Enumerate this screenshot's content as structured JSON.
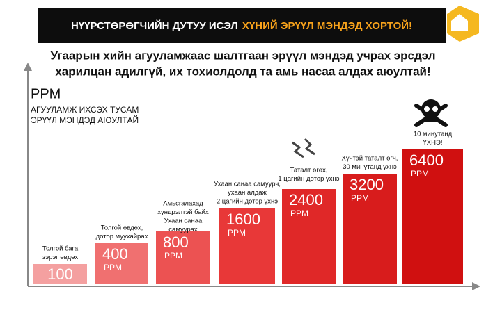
{
  "header": {
    "title_part1": "НҮҮРСТӨРӨГЧИЙН ДУТУУ ИСЭЛ",
    "title_part2": "ХҮНИЙ ЭРҮҮЛ МЭНДЭД ХОРТОЙ!"
  },
  "subtitle": [
    "Угаарын хийн агууламжаас шалтгаан эрүүл мэндэд учрах эрсдэл",
    "харилцан адилгүй, их тохиолдолд та амь насаа алдах аюултай!"
  ],
  "axis": {
    "unit": "PPM",
    "note": [
      "АГУУЛАМЖ ИХСЭХ ТУСАМ",
      "ЭРҮҮЛ МЭНДЭД АЮУЛТАЙ"
    ]
  },
  "levels": [
    {
      "value": 100,
      "caption": [
        "Толгой бага",
        "зэрэг өвдөх"
      ]
    },
    {
      "value": 400,
      "unit": "PPM",
      "caption": [
        "Толгой өвдөх,",
        "дотор муухайрах"
      ]
    },
    {
      "value": 800,
      "unit": "PPM",
      "caption": [
        "Амьсгалахад",
        "хүндрэлтэй байх",
        "Ухаан санаа",
        "самуурах"
      ]
    },
    {
      "value": 1600,
      "unit": "PPM",
      "caption": [
        "Ухаан санаа самуурч,",
        "ухаан алдаж",
        "2 цагийн дотор үхнэ"
      ]
    },
    {
      "value": 2400,
      "unit": "PPM",
      "caption": [
        "Таталт өгөх,",
        "1 цагийн дотор үхнэ"
      ]
    },
    {
      "value": 3200,
      "unit": "PPM",
      "caption": [
        "Хүчтэй таталт өгч,",
        "30 минутанд үхнэ"
      ]
    },
    {
      "value": 6400,
      "unit": "PPM",
      "caption": [
        "10 минутанд",
        "ҮХНЭ!"
      ]
    }
  ]
}
